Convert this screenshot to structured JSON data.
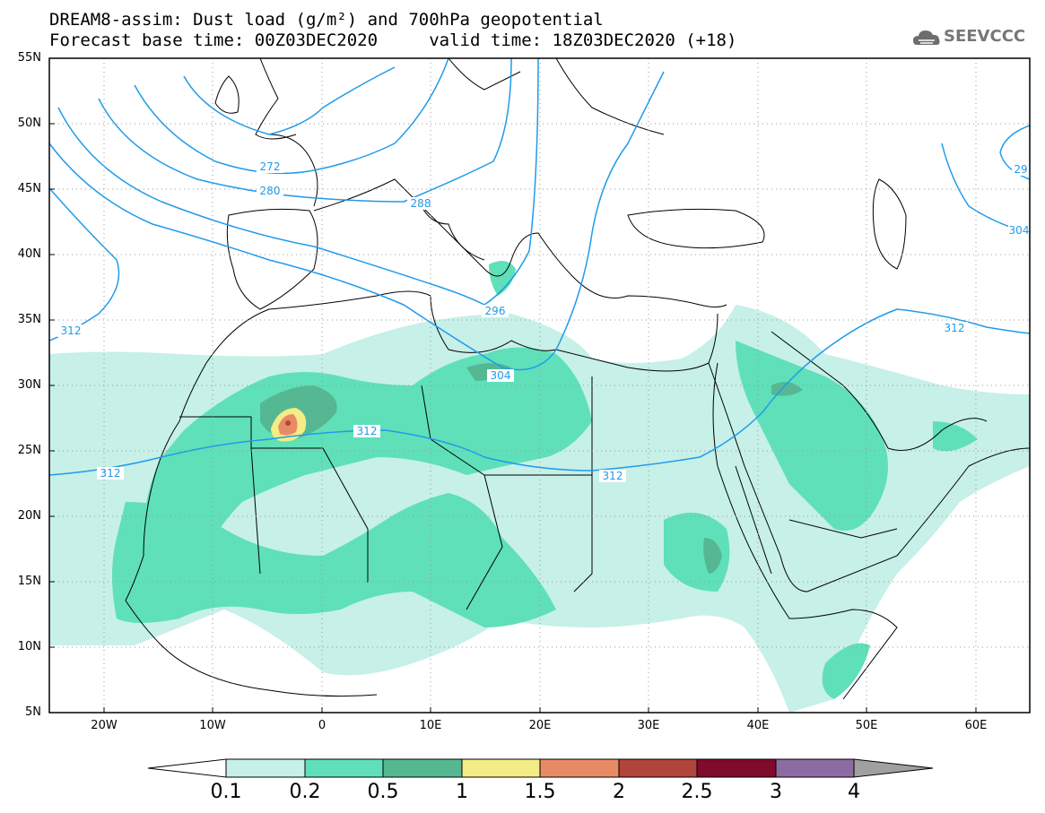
{
  "header": {
    "title_line1": "DREAM8-assim: Dust load (g/m²) and 700hPa geopotential",
    "title_line2": "Forecast base time: 00Z03DEC2020     valid time: 18Z03DEC2020 (+18)",
    "logo_text": "SEEVCCC"
  },
  "map": {
    "lat_labels": [
      "55N",
      "50N",
      "45N",
      "40N",
      "35N",
      "30N",
      "25N",
      "20N",
      "15N",
      "10N",
      "5N"
    ],
    "lon_labels": [
      "20W",
      "10W",
      "0",
      "10E",
      "20E",
      "30E",
      "40E",
      "50E",
      "60E"
    ],
    "geopotential_labels": [
      "272",
      "280",
      "288",
      "296",
      "304",
      "312",
      "312",
      "312",
      "312",
      "312",
      "29",
      "304"
    ],
    "colors": {
      "contour": "#1f9bea",
      "dust_0_1": "#c6f0e8",
      "dust_0_2": "#5fe0b8",
      "dust_0_5": "#55b893",
      "dust_1": "#f4ec85",
      "dust_1_5": "#e88a64",
      "dust_2": "#b1453c",
      "dust_2_5": "#7f0a2e",
      "dust_3": "#8c6ba3",
      "dust_4": "#a0a0a0"
    }
  },
  "legend": {
    "labels": [
      "0.1",
      "0.2",
      "0.5",
      "1",
      "1.5",
      "2",
      "2.5",
      "3",
      "4"
    ],
    "colors": [
      "#c6f0e8",
      "#5fe0b8",
      "#55b893",
      "#f4ec85",
      "#e88a64",
      "#b1453c",
      "#7f0a2e",
      "#8c6ba3",
      "#a0a0a0"
    ]
  }
}
